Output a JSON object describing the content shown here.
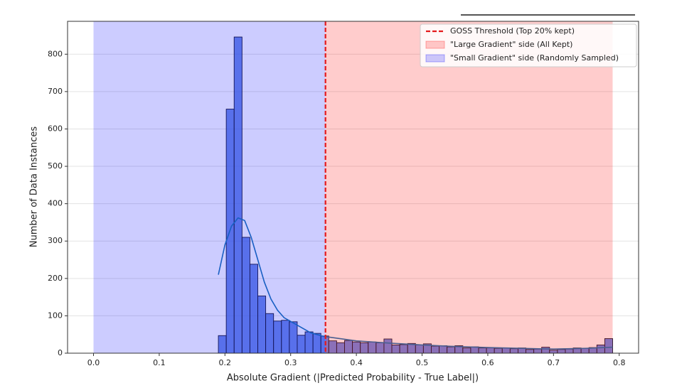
{
  "chart_data": {
    "type": "histogram",
    "xlabel": "Absolute Gradient (|Predicted Probability - True Label|)",
    "ylabel": "Number of Data Instances",
    "bins": [
      0.19,
      0.202,
      0.214,
      0.226,
      0.238,
      0.25,
      0.262,
      0.274,
      0.286,
      0.298,
      0.31,
      0.322,
      0.334,
      0.346,
      0.358,
      0.37,
      0.382,
      0.394,
      0.406,
      0.418,
      0.43,
      0.442,
      0.454,
      0.466,
      0.478,
      0.49,
      0.502,
      0.514,
      0.526,
      0.538,
      0.55,
      0.562,
      0.574,
      0.586,
      0.598,
      0.61,
      0.622,
      0.634,
      0.646,
      0.658,
      0.67,
      0.682,
      0.694,
      0.706,
      0.718,
      0.73,
      0.742,
      0.754,
      0.766,
      0.778,
      0.79
    ],
    "counts": [
      47,
      653,
      846,
      310,
      238,
      153,
      106,
      86,
      88,
      84,
      48,
      57,
      53,
      46,
      33,
      28,
      34,
      30,
      28,
      30,
      28,
      38,
      22,
      23,
      26,
      22,
      25,
      19,
      20,
      17,
      20,
      14,
      17,
      14,
      14,
      13,
      14,
      12,
      14,
      10,
      11,
      16,
      8,
      10,
      11,
      14,
      13,
      15,
      22,
      39
    ],
    "color": "#4a6fe0",
    "kde": {
      "color": "#1f77b4",
      "x": [
        0.19,
        0.2,
        0.21,
        0.22,
        0.23,
        0.24,
        0.25,
        0.26,
        0.27,
        0.28,
        0.29,
        0.3,
        0.31,
        0.32,
        0.33,
        0.35,
        0.4,
        0.45,
        0.5,
        0.55,
        0.6,
        0.65,
        0.7,
        0.75,
        0.79
      ],
      "values": [
        210,
        290,
        340,
        362,
        355,
        310,
        250,
        190,
        145,
        115,
        95,
        85,
        75,
        65,
        55,
        45,
        33,
        27,
        22,
        18,
        15,
        13,
        11,
        13,
        16
      ]
    },
    "threshold": {
      "value": 0.353,
      "label": "GOSS Threshold (Top 20% kept)",
      "color": "#e41a1c"
    },
    "spans": [
      {
        "label": "\"Large Gradient\" side (All Kept)",
        "color": "#ff0000",
        "range": [
          0.353,
          0.79
        ]
      },
      {
        "label": "\"Small Gradient\" side (Randomly Sampled)",
        "color": "#0000ff",
        "range": [
          0,
          0.353
        ]
      }
    ],
    "xlim": [
      -0.0395,
      0.8295
    ],
    "ylim": [
      0,
      888
    ],
    "xticks": [
      {
        "value": 0,
        "label": "0.0"
      },
      0.1,
      0.2,
      0.3,
      0.4,
      0.5,
      0.6,
      0.7,
      0.8
    ],
    "yticks": [
      0,
      100,
      200,
      300,
      400,
      500,
      600,
      700,
      800
    ],
    "grid": true,
    "legend": "upper right"
  }
}
